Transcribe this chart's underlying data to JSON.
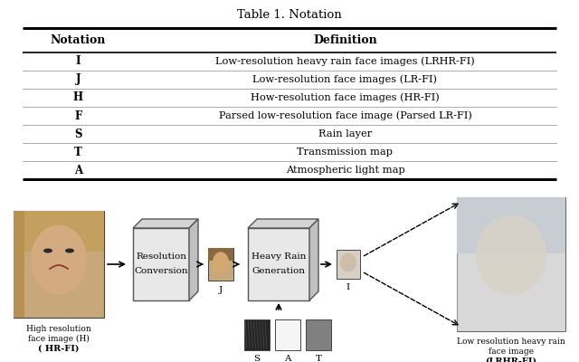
{
  "title": "Table 1. Notation",
  "table_headers": [
    "Notation",
    "Definition"
  ],
  "table_rows": [
    [
      "I",
      "Low-resolution heavy rain face images (LRHR-FI)"
    ],
    [
      "J",
      "Low-resolution face images (LR-FI)"
    ],
    [
      "H",
      "How-resolution face images (HR-FI)"
    ],
    [
      "F",
      "Parsed low-resolution face image (Parsed LR-FI)"
    ],
    [
      "S",
      "Rain layer"
    ],
    [
      "T",
      "Transmission map"
    ],
    [
      "A",
      "Atmospheric light map"
    ]
  ],
  "bg_color": "#ffffff",
  "diagram_labels": {
    "high_res_label1": "High resolution",
    "high_res_label2": "face image (H)",
    "high_res_label3": "( HR-FI)",
    "box1_line1": "Resolution",
    "box1_line2": "Conversion",
    "j_label": "J",
    "box2_line1": "Heavy Rain",
    "box2_line2": "Generation",
    "i_label": "I",
    "s_label": "S",
    "a_label": "A",
    "t_label": "T",
    "low_res_label1": "Low resolution heavy rain",
    "low_res_label2": "face image",
    "low_res_label3": "(LRHR-FI)"
  }
}
